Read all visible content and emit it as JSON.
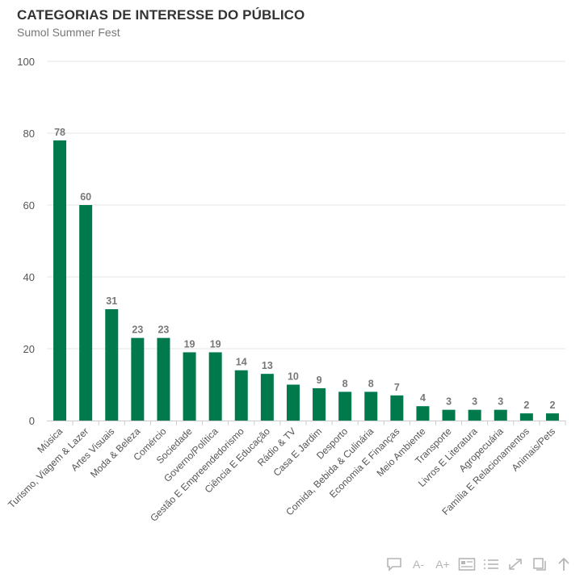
{
  "title": "CATEGORIAS DE INTERESSE DO PÚBLICO",
  "subtitle": "Sumol Summer Fest",
  "colors": {
    "bar": "#007a4c",
    "grid": "#e6e6e6",
    "axis_text": "#555555",
    "value_text": "#777777",
    "toolbar": "#b6b6b6"
  },
  "toolbar": {
    "items": [
      {
        "name": "comment-icon",
        "label": ""
      },
      {
        "name": "font-decrease-button",
        "label": "A-"
      },
      {
        "name": "font-increase-button",
        "label": "A+"
      },
      {
        "name": "data-card-icon",
        "label": ""
      },
      {
        "name": "list-icon",
        "label": ""
      },
      {
        "name": "expand-icon",
        "label": ""
      },
      {
        "name": "copy-icon",
        "label": ""
      },
      {
        "name": "scroll-top-icon",
        "label": ""
      }
    ]
  },
  "chart_data": {
    "type": "bar",
    "title": "CATEGORIAS DE INTERESSE DO PÚBLICO",
    "subtitle": "Sumol Summer Fest",
    "xlabel": "",
    "ylabel": "",
    "ylim": [
      0,
      100
    ],
    "yticks": [
      0,
      20,
      40,
      60,
      80,
      100
    ],
    "grid": true,
    "categories": [
      "Música",
      "Turismo, Viagem & Lazer",
      "Artes Visuais",
      "Moda & Beleza",
      "Comércio",
      "Sociedade",
      "Governo/Política",
      "Gestão E Empreendedorismo",
      "Ciência E Educação",
      "Rádio & TV",
      "Casa E Jardim",
      "Desporto",
      "Comida, Bebida & Culinária",
      "Economia E Finanças",
      "Meio Ambiente",
      "Transporte",
      "Livros E Literatura",
      "Agropecuária",
      "Família E Relacionamentos",
      "Animais/Pets"
    ],
    "values": [
      78,
      60,
      31,
      23,
      23,
      19,
      19,
      14,
      13,
      10,
      9,
      8,
      8,
      7,
      4,
      3,
      3,
      3,
      2,
      2
    ]
  }
}
